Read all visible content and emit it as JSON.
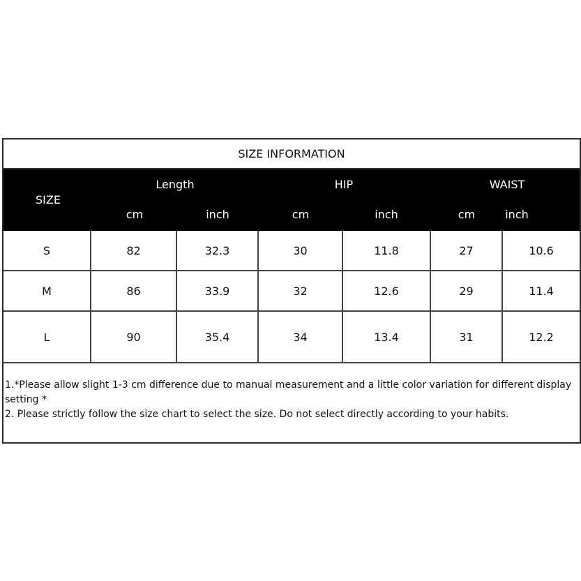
{
  "title": "SIZE INFORMATION",
  "header": {
    "size": "SIZE",
    "groups": [
      "Length",
      "HIP",
      "WAIST"
    ],
    "units": [
      "cm",
      "inch",
      "cm",
      "inch",
      "cm",
      "inch"
    ]
  },
  "rows": [
    [
      "S",
      "82",
      "32.3",
      "30",
      "11.8",
      "27",
      "10.6"
    ],
    [
      "M",
      "86",
      "33.9",
      "32",
      "12.6",
      "29",
      "11.4"
    ],
    [
      "L",
      "90",
      "35.4",
      "34",
      "13.4",
      "31",
      "12.2"
    ]
  ],
  "notes": [
    "1.*Please allow slight 1-3 cm difference due to manual measurement and a little color variation for different display setting *",
    "2. Please strictly follow the size chart to select the size. Do not select directly according to your habits."
  ]
}
